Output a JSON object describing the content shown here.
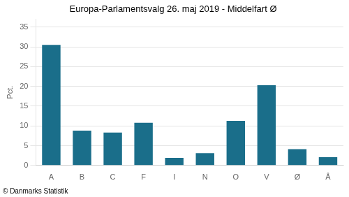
{
  "chart_data": {
    "type": "bar",
    "title": "Europa-Parlamentsvalg 26. maj 2019 - Middelfart Ø",
    "ylabel": "Pct.",
    "footer": "© Danmarks Statistik",
    "categories": [
      "A",
      "B",
      "C",
      "F",
      "I",
      "N",
      "O",
      "V",
      "Ø",
      "Å"
    ],
    "values": [
      30.5,
      8.8,
      8.3,
      10.8,
      1.9,
      3.1,
      11.3,
      20.3,
      4.1,
      2.1
    ],
    "color": "#1a6e8a",
    "ylim": [
      0,
      37
    ],
    "yticks": [
      0,
      5,
      10,
      15,
      20,
      25,
      30,
      35
    ],
    "grid": true
  }
}
